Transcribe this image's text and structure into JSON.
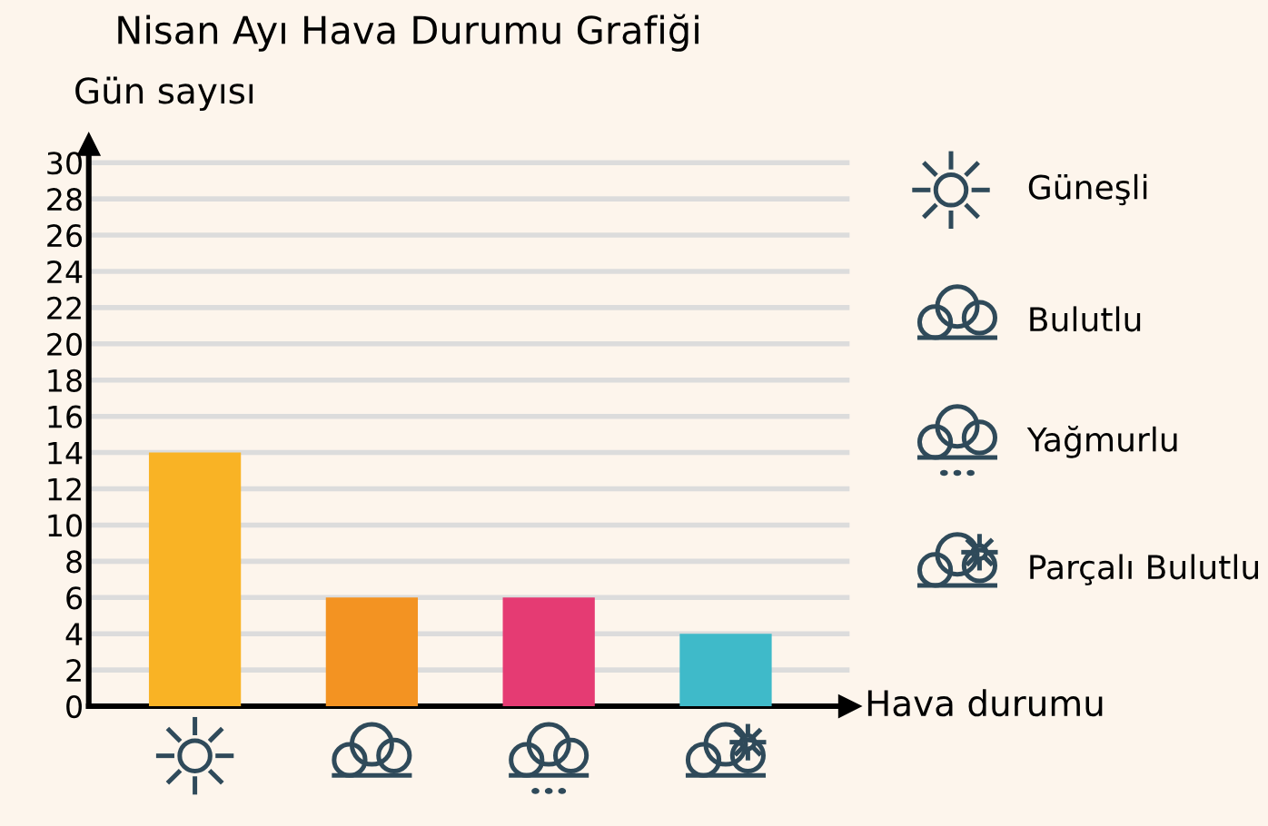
{
  "chart_data": {
    "type": "bar",
    "title": "Nisan Ayı Hava Durumu Grafiği",
    "xlabel": "Hava durumu",
    "ylabel": "Gün sayısı",
    "categories": [
      null,
      null,
      null,
      null
    ],
    "values": [
      14,
      6,
      6,
      4
    ],
    "colors": [
      "#f9b325",
      "#f39322",
      "#e53b73",
      "#3fbac9"
    ],
    "ylim": [
      0,
      31
    ],
    "yticks": [
      0,
      2,
      4,
      6,
      8,
      10,
      12,
      14,
      16,
      18,
      20,
      22,
      24,
      26,
      28,
      30
    ],
    "grid": "y",
    "annotations": [
      "Güneşli",
      "Bulutlu",
      "Yağmurlu",
      "Parçalı Bulutlu"
    ]
  }
}
